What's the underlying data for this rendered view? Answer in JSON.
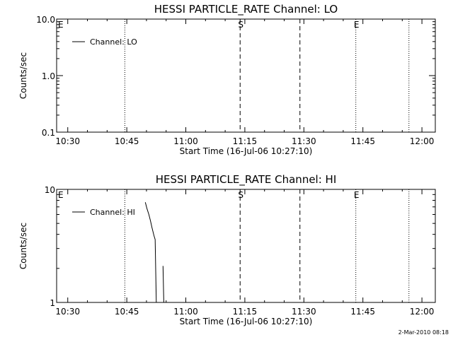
{
  "footer_timestamp": "2-Mar-2010 08:18",
  "colors": {
    "background": "#ffffff",
    "ink": "#000000"
  },
  "chart_data": [
    {
      "type": "line",
      "title": "HESSI PARTICLE_RATE Channel: LO",
      "xlabel": "Start Time (16-Jul-06 10:27:10)",
      "ylabel": "Counts/sec",
      "yscale": "log",
      "ylim": [
        0.1,
        10.0
      ],
      "xlim_minutes": [
        27.17,
        123.4
      ],
      "x_ticks": [
        {
          "t": 30,
          "label": "10:30"
        },
        {
          "t": 45,
          "label": "10:45"
        },
        {
          "t": 60,
          "label": "11:00"
        },
        {
          "t": 75,
          "label": "11:15"
        },
        {
          "t": 90,
          "label": "11:30"
        },
        {
          "t": 105,
          "label": "11:45"
        },
        {
          "t": 120,
          "label": "12:00"
        }
      ],
      "y_ticks": [
        {
          "v": 0.1,
          "label": "0.1"
        },
        {
          "v": 1.0,
          "label": "1.0"
        },
        {
          "v": 10.0,
          "label": "10.0"
        }
      ],
      "legend": {
        "position": "top-left",
        "entries": [
          "Channel: LO"
        ]
      },
      "series": [
        {
          "name": "Channel: LO",
          "points": []
        }
      ],
      "vlines": [
        {
          "t": 44.5,
          "style": "dotted",
          "label": ""
        },
        {
          "t": 73.8,
          "style": "dashed",
          "label": "S"
        },
        {
          "t": 89.0,
          "style": "dashed",
          "label": ""
        },
        {
          "t": 103.2,
          "style": "dotted",
          "label": "E"
        },
        {
          "t": 116.7,
          "style": "dotted",
          "label": ""
        }
      ],
      "edge_marker": "E",
      "grid": false
    },
    {
      "type": "line",
      "title": "HESSI PARTICLE_RATE Channel: HI",
      "xlabel": "Start Time (16-Jul-06 10:27:10)",
      "ylabel": "Counts/sec",
      "yscale": "log",
      "ylim": [
        1,
        10
      ],
      "xlim_minutes": [
        27.17,
        123.4
      ],
      "x_ticks": [
        {
          "t": 30,
          "label": "10:30"
        },
        {
          "t": 45,
          "label": "10:45"
        },
        {
          "t": 60,
          "label": "11:00"
        },
        {
          "t": 75,
          "label": "11:15"
        },
        {
          "t": 90,
          "label": "11:30"
        },
        {
          "t": 105,
          "label": "11:45"
        },
        {
          "t": 120,
          "label": "12:00"
        }
      ],
      "y_ticks": [
        {
          "v": 1,
          "label": "1"
        },
        {
          "v": 10,
          "label": "10"
        }
      ],
      "legend": {
        "position": "top-left",
        "entries": [
          "Channel: HI"
        ]
      },
      "series": [
        {
          "name": "Channel: HI",
          "segments": [
            [
              [
                49.7,
                7.7
              ],
              [
                50.1,
                6.8
              ],
              [
                50.6,
                6.0
              ],
              [
                51.0,
                5.3
              ],
              [
                51.4,
                4.6
              ],
              [
                51.9,
                3.9
              ],
              [
                52.2,
                3.6
              ],
              [
                52.5,
                1.0
              ]
            ],
            [
              [
                54.2,
                2.1
              ],
              [
                54.4,
                1.0
              ]
            ]
          ]
        }
      ],
      "vlines": [
        {
          "t": 44.5,
          "style": "dotted",
          "label": ""
        },
        {
          "t": 73.8,
          "style": "dashed",
          "label": "S"
        },
        {
          "t": 89.0,
          "style": "dashed",
          "label": ""
        },
        {
          "t": 103.2,
          "style": "dotted",
          "label": "E"
        },
        {
          "t": 116.7,
          "style": "dotted",
          "label": ""
        }
      ],
      "edge_marker": "E",
      "grid": false
    }
  ]
}
